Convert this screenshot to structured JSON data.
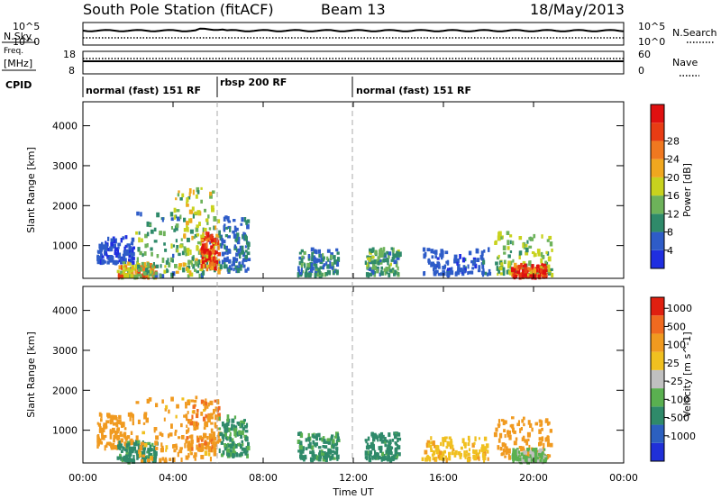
{
  "header": {
    "station": "South Pole Station (fitACF)",
    "beam": "Beam 13",
    "date": "18/May/2013"
  },
  "aux": {
    "nsky_label": "N.Sky",
    "nsearch_label": "N.Search",
    "freq_label_1": "Freq.",
    "freq_label_2": "[MHz]",
    "nave_label": "Nave",
    "cpid_label": "CPID",
    "left_ticks_top": [
      "10^5",
      "10^0"
    ],
    "right_ticks_top": [
      "10^5",
      "10^0"
    ],
    "left_ticks_freq": [
      "18",
      "8"
    ],
    "right_ticks_freq": [
      "60",
      "0"
    ]
  },
  "cpid": [
    {
      "label": "normal (fast) 151 RF",
      "start_h": 0,
      "end_h": 6
    },
    {
      "label": "rbsp 200 RF",
      "start_h": 6,
      "end_h": 12
    },
    {
      "label": "normal (fast) 151 RF",
      "start_h": 12,
      "end_h": 24
    }
  ],
  "axes": {
    "xlabel": "Time UT",
    "x_ticks": [
      "00:00",
      "04:00",
      "08:00",
      "12:00",
      "16:00",
      "20:00",
      "00:00"
    ],
    "ylabel": "Slant Range [km]",
    "y_ticks": [
      "1000",
      "2000",
      "3000",
      "4000"
    ]
  },
  "colorbars": {
    "power": {
      "label": "Power [dB]",
      "ticks": [
        "4",
        "8",
        "12",
        "16",
        "20",
        "24",
        "28"
      ],
      "colors": [
        "#1f2ee0",
        "#2e5cc8",
        "#2f8a6a",
        "#6db25a",
        "#c8d21e",
        "#f0a71f",
        "#f07820",
        "#e83c14",
        "#e01010"
      ]
    },
    "velocity": {
      "label": "Velocity [m s^-1]",
      "ticks": [
        "1000",
        "500",
        "100",
        "25",
        "-25",
        "-100",
        "-500",
        "-1000"
      ],
      "colors": [
        "#2030d8",
        "#2c60c0",
        "#2f8a6a",
        "#5ab050",
        "#c0c0c0",
        "#f0c020",
        "#f09a20",
        "#f06a20",
        "#e02010"
      ]
    }
  },
  "chart_data": [
    {
      "type": "heatmap",
      "title": "Power",
      "xlabel": "Time UT",
      "ylabel": "Slant Range [km]",
      "xlim": [
        0,
        24
      ],
      "ylim": [
        180,
        4600
      ],
      "colorbar": "Power [dB]",
      "clim": [
        0,
        30
      ],
      "patches": [
        {
          "t": [
            0.6,
            2.2
          ],
          "r": [
            550,
            1200
          ],
          "v": 4
        },
        {
          "t": [
            1.5,
            3.2
          ],
          "r": [
            200,
            550
          ],
          "v": 18
        },
        {
          "t": [
            2.3,
            5.8
          ],
          "r": [
            200,
            1800
          ],
          "v": 10
        },
        {
          "t": [
            4.0,
            6.0
          ],
          "r": [
            300,
            2400
          ],
          "v": 14
        },
        {
          "t": [
            5.2,
            6.0
          ],
          "r": [
            400,
            1300
          ],
          "v": 24
        },
        {
          "t": [
            6.0,
            7.3
          ],
          "r": [
            350,
            1700
          ],
          "v": 6
        },
        {
          "t": [
            9.5,
            11.3
          ],
          "r": [
            250,
            900
          ],
          "v": 8
        },
        {
          "t": [
            12.5,
            14.0
          ],
          "r": [
            250,
            900
          ],
          "v": 10
        },
        {
          "t": [
            15.0,
            18.0
          ],
          "r": [
            250,
            900
          ],
          "v": 5
        },
        {
          "t": [
            18.2,
            20.8
          ],
          "r": [
            250,
            1300
          ],
          "v": 12
        },
        {
          "t": [
            19.0,
            20.5
          ],
          "r": [
            200,
            500
          ],
          "v": 26
        }
      ]
    },
    {
      "type": "heatmap",
      "title": "Velocity",
      "xlabel": "Time UT",
      "ylabel": "Slant Range [km]",
      "xlim": [
        0,
        24
      ],
      "ylim": [
        180,
        4600
      ],
      "colorbar": "Velocity [m s^-1]",
      "clim": [
        -1000,
        1000
      ],
      "patches": [
        {
          "t": [
            0.6,
            2.2
          ],
          "r": [
            550,
            1400
          ],
          "v": -200
        },
        {
          "t": [
            1.5,
            3.2
          ],
          "r": [
            200,
            700
          ],
          "v": 150
        },
        {
          "t": [
            2.3,
            5.8
          ],
          "r": [
            200,
            1800
          ],
          "v": -150
        },
        {
          "t": [
            4.5,
            6.0
          ],
          "r": [
            500,
            1800
          ],
          "v": -400
        },
        {
          "t": [
            6.0,
            7.3
          ],
          "r": [
            350,
            1400
          ],
          "v": 100
        },
        {
          "t": [
            9.5,
            11.3
          ],
          "r": [
            250,
            900
          ],
          "v": 120
        },
        {
          "t": [
            12.5,
            14.0
          ],
          "r": [
            250,
            900
          ],
          "v": 150
        },
        {
          "t": [
            15.0,
            18.0
          ],
          "r": [
            250,
            800
          ],
          "v": -80
        },
        {
          "t": [
            18.2,
            20.8
          ],
          "r": [
            300,
            1300
          ],
          "v": -300
        },
        {
          "t": [
            19.0,
            20.5
          ],
          "r": [
            200,
            500
          ],
          "v": 30
        }
      ]
    }
  ]
}
